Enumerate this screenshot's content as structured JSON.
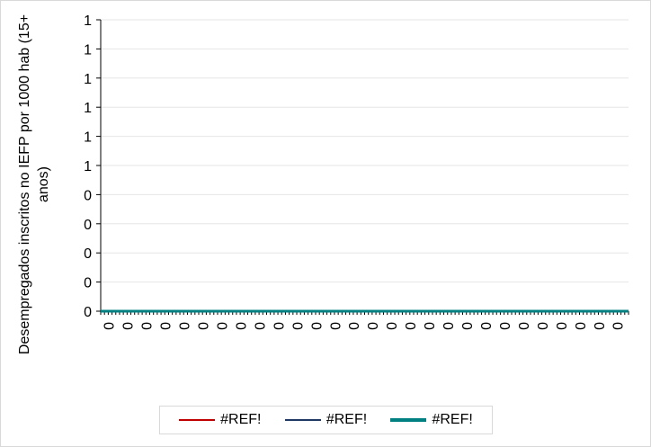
{
  "chart_data": {
    "type": "line",
    "ylabel": "Desempregados inscritos no IEFP por 1000 hab (15+ anos)",
    "xlabel": "",
    "y_tick_labels": [
      "1",
      "1",
      "1",
      "1",
      "1",
      "1",
      "0",
      "0",
      "0",
      "0",
      "0"
    ],
    "ylim": [
      0,
      1
    ],
    "x_tick_labels": [
      "0",
      "0",
      "0",
      "0",
      "0",
      "0",
      "0",
      "0",
      "0",
      "0",
      "0",
      "0",
      "0",
      "0",
      "0",
      "0",
      "0",
      "0",
      "0",
      "0",
      "0",
      "0",
      "0",
      "0",
      "0",
      "0",
      "0",
      "0"
    ],
    "grid": true,
    "legend_position": "bottom",
    "series": [
      {
        "name": "#REF!",
        "color": "#c00000",
        "values": [
          0,
          0,
          0,
          0,
          0,
          0,
          0,
          0,
          0,
          0,
          0,
          0,
          0,
          0,
          0,
          0,
          0,
          0,
          0,
          0,
          0,
          0,
          0,
          0,
          0,
          0,
          0,
          0
        ]
      },
      {
        "name": "#REF!",
        "color": "#1f3864",
        "values": [
          0,
          0,
          0,
          0,
          0,
          0,
          0,
          0,
          0,
          0,
          0,
          0,
          0,
          0,
          0,
          0,
          0,
          0,
          0,
          0,
          0,
          0,
          0,
          0,
          0,
          0,
          0,
          0
        ]
      },
      {
        "name": "#REF!",
        "color": "#008080",
        "values": [
          0,
          0,
          0,
          0,
          0,
          0,
          0,
          0,
          0,
          0,
          0,
          0,
          0,
          0,
          0,
          0,
          0,
          0,
          0,
          0,
          0,
          0,
          0,
          0,
          0,
          0,
          0,
          0
        ]
      }
    ]
  }
}
